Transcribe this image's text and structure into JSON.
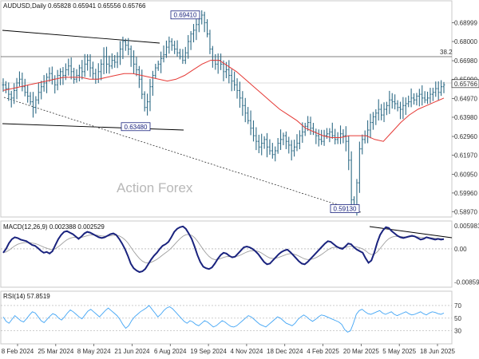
{
  "chart_data": {
    "type": "ohlc",
    "symbol": "AUDUSD",
    "timeframe": "Daily",
    "ohlc_header": [
      "0.65828",
      "0.65941",
      "0.65556",
      "0.65766"
    ],
    "watermark": "Action Forex",
    "price_axis": {
      "ticks": [
        "0.68999",
        "0.68000",
        "0.66980",
        "0.65990",
        "0.64970",
        "0.63980",
        "0.62960",
        "0.61970",
        "0.60950",
        "0.59960",
        "0.58970"
      ],
      "range": [
        0.5877,
        0.6961
      ],
      "current_price": "0.65766"
    },
    "dates": [
      "8 Feb 2024",
      "25 Mar 2024",
      "8 May 2024",
      "21 Jun 2024",
      "6 Aug 2024",
      "19 Sep 2024",
      "4 Nov 2024",
      "18 Dec 2024",
      "4 Feb 2025",
      "20 Mar 2025",
      "5 May 2025",
      "18 Jun 2025"
    ],
    "fib_level": "38.2",
    "annotations": [
      {
        "label": "0.69410",
        "value": 0.6941
      },
      {
        "label": "0.63480",
        "value": 0.6348
      },
      {
        "label": "0.59130",
        "value": 0.5913
      }
    ],
    "moving_average": {
      "color": "#e53935"
    },
    "price_color": "#2f6b86",
    "close_series": [
      0.657,
      0.655,
      0.652,
      0.65,
      0.654,
      0.658,
      0.66,
      0.656,
      0.653,
      0.651,
      0.648,
      0.645,
      0.649,
      0.653,
      0.656,
      0.658,
      0.661,
      0.663,
      0.66,
      0.657,
      0.662,
      0.664,
      0.662,
      0.665,
      0.667,
      0.664,
      0.66,
      0.662,
      0.666,
      0.664,
      0.668,
      0.67,
      0.666,
      0.663,
      0.66,
      0.664,
      0.668,
      0.672,
      0.668,
      0.667,
      0.67,
      0.669,
      0.672,
      0.676,
      0.68,
      0.678,
      0.676,
      0.672,
      0.668,
      0.665,
      0.66,
      0.652,
      0.645,
      0.648,
      0.656,
      0.662,
      0.666,
      0.668,
      0.671,
      0.673,
      0.677,
      0.68,
      0.678,
      0.676,
      0.674,
      0.672,
      0.67,
      0.674,
      0.68,
      0.684,
      0.686,
      0.689,
      0.692,
      0.694,
      0.69,
      0.684,
      0.676,
      0.67,
      0.668,
      0.67,
      0.668,
      0.664,
      0.665,
      0.662,
      0.659,
      0.657,
      0.654,
      0.65,
      0.646,
      0.642,
      0.638,
      0.634,
      0.63,
      0.627,
      0.624,
      0.626,
      0.628,
      0.624,
      0.622,
      0.62,
      0.622,
      0.626,
      0.628,
      0.63,
      0.627,
      0.625,
      0.622,
      0.624,
      0.626,
      0.63,
      0.632,
      0.635,
      0.637,
      0.634,
      0.632,
      0.63,
      0.628,
      0.627,
      0.63,
      0.631,
      0.632,
      0.63,
      0.628,
      0.629,
      0.631,
      0.63,
      0.627,
      0.617,
      0.596,
      0.592,
      0.605,
      0.623,
      0.628,
      0.63,
      0.633,
      0.637,
      0.64,
      0.642,
      0.644,
      0.641,
      0.644,
      0.646,
      0.649,
      0.648,
      0.647,
      0.645,
      0.644,
      0.646,
      0.647,
      0.648,
      0.65,
      0.649,
      0.651,
      0.652,
      0.65,
      0.649,
      0.65,
      0.652,
      0.653,
      0.655,
      0.653,
      0.656,
      0.657
    ],
    "ma_series": [
      0.654,
      0.655,
      0.656,
      0.657,
      0.658,
      0.659,
      0.66,
      0.661,
      0.661,
      0.661,
      0.66,
      0.66,
      0.661,
      0.662,
      0.663,
      0.663,
      0.662,
      0.661,
      0.66,
      0.659,
      0.66,
      0.662,
      0.665,
      0.668,
      0.67,
      0.67,
      0.667,
      0.664,
      0.66,
      0.656,
      0.652,
      0.648,
      0.644,
      0.641,
      0.638,
      0.634,
      0.632,
      0.63,
      0.629,
      0.629,
      0.63,
      0.63,
      0.63,
      0.628,
      0.627,
      0.632,
      0.637,
      0.641,
      0.644,
      0.646,
      0.648,
      0.65
    ],
    "macd": {
      "label": "MACD(12,26,9)",
      "values": [
        "0.002388",
        "0.002529"
      ],
      "axis_ticks": [
        "0.005981",
        "0.00",
        "-0.00859"
      ],
      "range": [
        -0.0095,
        0.0068
      ],
      "line_color": "#1a237e",
      "signal_color": "#9e9e9e",
      "macd_series": [
        -0.001,
        0.0,
        0.0015,
        0.0025,
        0.003,
        0.0028,
        0.0024,
        0.0022,
        0.002,
        0.0015,
        0.001,
        0.0008,
        0.0002,
        -0.0005,
        -0.001,
        -0.0008,
        -0.0012,
        -0.0006,
        0.001,
        0.0025,
        0.0036,
        0.0044,
        0.0046,
        0.0042,
        0.0038,
        0.0032,
        0.0026,
        0.0032,
        0.004,
        0.0044,
        0.0042,
        0.0038,
        0.0034,
        0.003,
        0.0028,
        0.003,
        0.0034,
        0.0038,
        0.004,
        0.0036,
        0.0026,
        0.0014,
        0.0,
        -0.0018,
        -0.0038,
        -0.005,
        -0.0056,
        -0.006,
        -0.0058,
        -0.0052,
        -0.004,
        -0.0028,
        -0.0018,
        -0.001,
        0.0,
        0.0008,
        0.0012,
        0.0018,
        0.003,
        0.0044,
        0.0052,
        0.0056,
        0.0058,
        0.0052,
        0.004,
        0.0026,
        0.0006,
        -0.0016,
        -0.0034,
        -0.0046,
        -0.005,
        -0.0052,
        -0.0048,
        -0.0038,
        -0.0026,
        -0.0016,
        -0.001,
        -0.0012,
        -0.0018,
        -0.0022,
        -0.002,
        -0.0012,
        -0.0004,
        0.0004,
        0.0006,
        0.0004,
        0.0,
        -0.0006,
        -0.0014,
        -0.0024,
        -0.0034,
        -0.004,
        -0.0038,
        -0.003,
        -0.0022,
        -0.0014,
        -0.0008,
        -0.0004,
        -0.0002,
        -0.0008,
        -0.0016,
        -0.0024,
        -0.0032,
        -0.0038,
        -0.004,
        -0.0034,
        -0.0026,
        -0.0018,
        -0.001,
        -0.0002,
        0.0006,
        0.0014,
        0.002,
        0.0018,
        0.0012,
        0.0006,
        0.0002,
        0.0,
        0.0006,
        0.0014,
        0.0012,
        0.0004,
        -0.0002,
        -0.0006,
        -0.001,
        -0.0024,
        -0.0036,
        -0.003,
        -0.001,
        0.0016,
        0.0036,
        0.0048,
        0.0056,
        0.0054,
        0.0046,
        0.004,
        0.0034,
        0.003,
        0.0028,
        0.003,
        0.0032,
        0.0034,
        0.0032,
        0.0028,
        0.0024,
        0.0026,
        0.003,
        0.0028,
        0.0026,
        0.0024,
        0.0026,
        0.0024,
        0.0025
      ]
    },
    "rsi": {
      "label": "RSI(14)",
      "value": "57.8519",
      "axis_ticks": [
        "70",
        "50",
        "30"
      ],
      "range": [
        12,
        90
      ],
      "line_color": "#42a5f5",
      "rsi_series": [
        52,
        45,
        42,
        48,
        54,
        50,
        46,
        44,
        49,
        55,
        60,
        58,
        52,
        46,
        43,
        48,
        53,
        57,
        55,
        50,
        47,
        52,
        58,
        63,
        60,
        56,
        52,
        49,
        55,
        61,
        64,
        60,
        56,
        52,
        57,
        62,
        66,
        62,
        58,
        54,
        48,
        40,
        34,
        38,
        46,
        52,
        56,
        60,
        63,
        66,
        70,
        64,
        58,
        52,
        56,
        62,
        66,
        68,
        65,
        60,
        55,
        50,
        45,
        42,
        46,
        44,
        40,
        38,
        42,
        46,
        44,
        40,
        36,
        38,
        42,
        46,
        44,
        40,
        37,
        36,
        38,
        42,
        46,
        50,
        54,
        52,
        48,
        44,
        40,
        38,
        36,
        40,
        44,
        48,
        52,
        50,
        46,
        42,
        40,
        38,
        42,
        48,
        52,
        55,
        52,
        48,
        45,
        48,
        52,
        55,
        54,
        52,
        50,
        48,
        46,
        44,
        40,
        32,
        28,
        30,
        42,
        56,
        62,
        64,
        60,
        57,
        56,
        58,
        60,
        62,
        58,
        56,
        58,
        60,
        56,
        54,
        56,
        58,
        60,
        57,
        55,
        56,
        58,
        60,
        57,
        55,
        58,
        60,
        59,
        57,
        56,
        58
      ]
    }
  }
}
